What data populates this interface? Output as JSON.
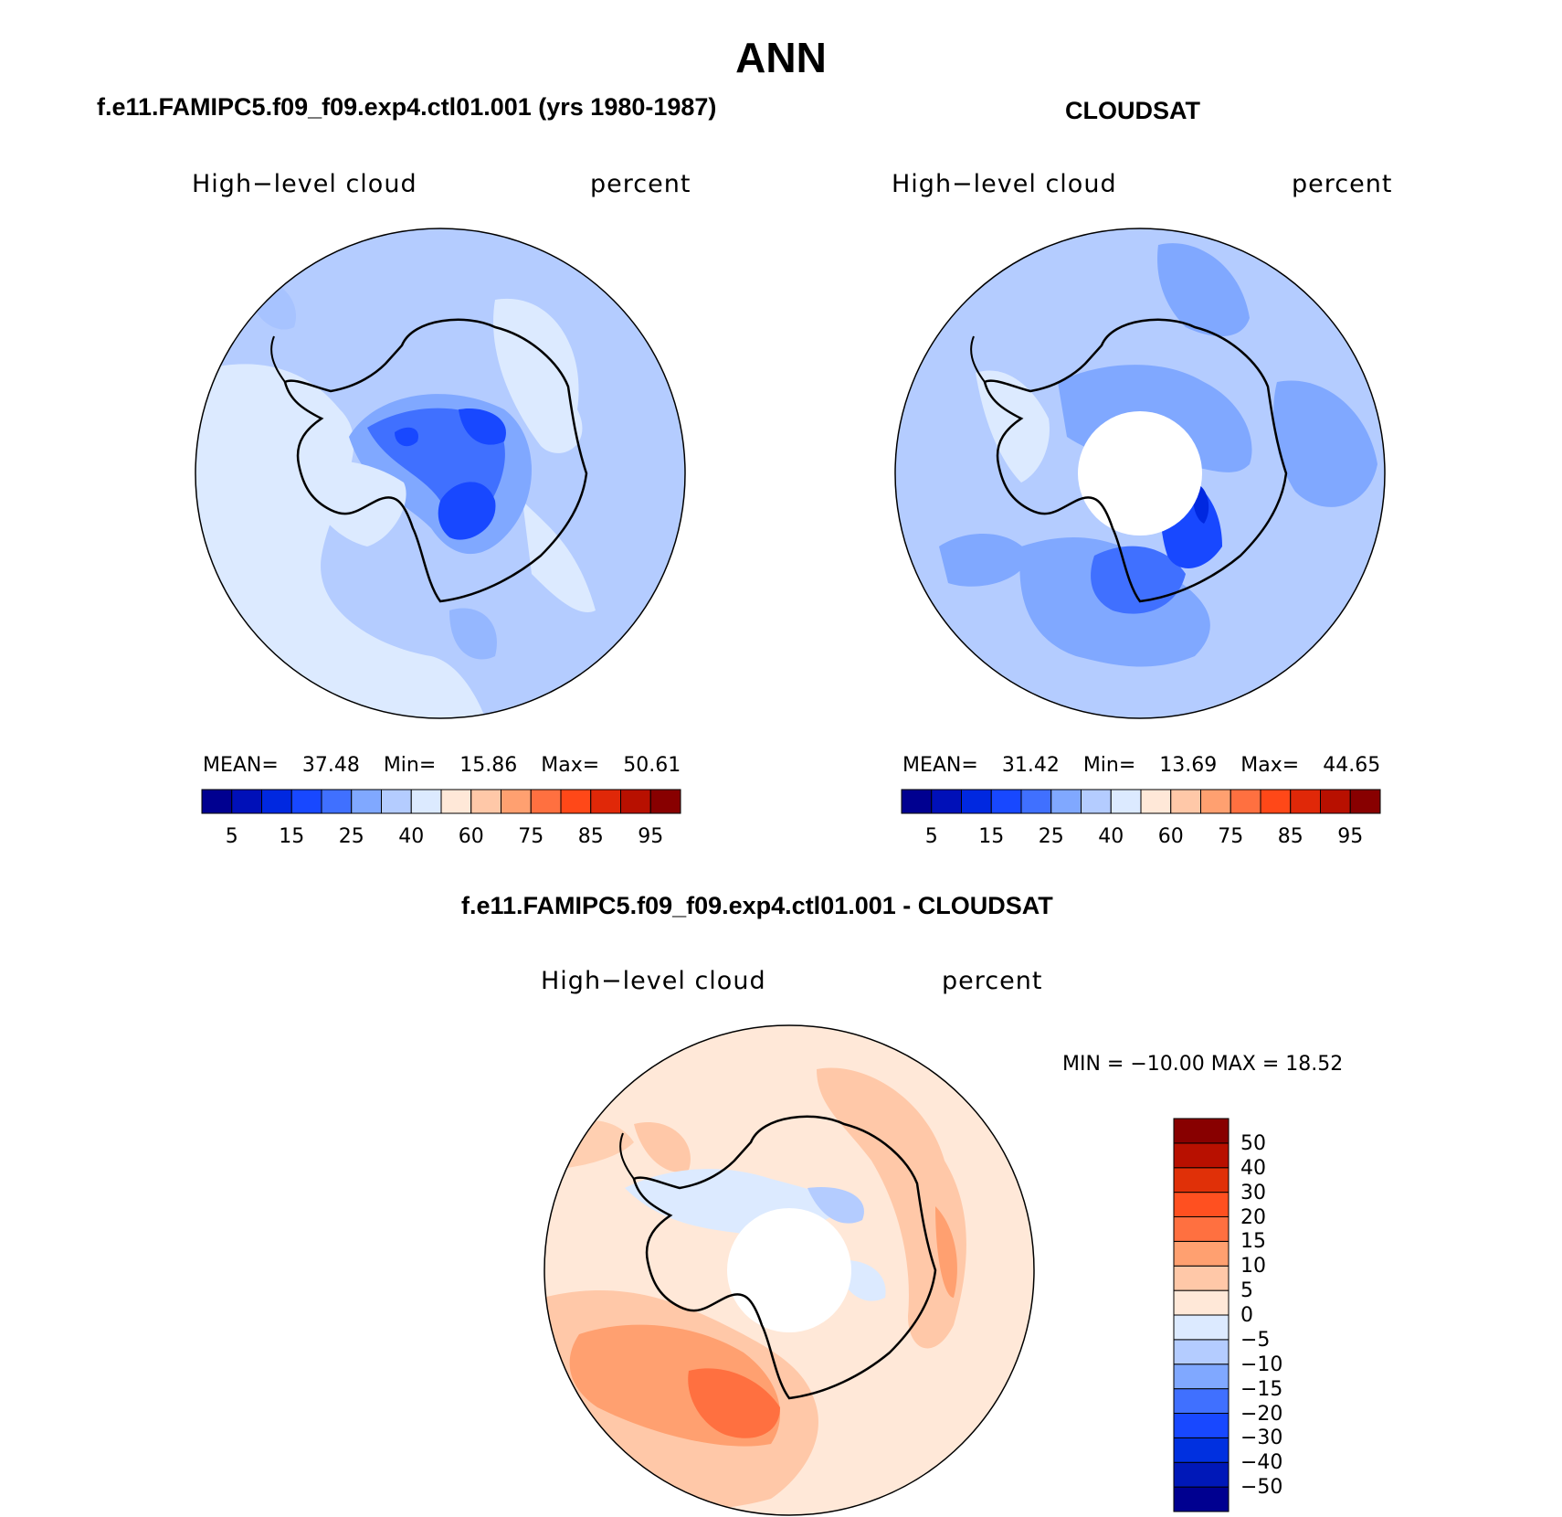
{
  "season": "ANN",
  "panels": [
    {
      "id": "model",
      "title": "f.e11.FAMIPC5.f09_f09.exp4.ctl01.001 (yrs 1980-1987)",
      "variable": "High−level cloud",
      "units": "percent",
      "stats": {
        "mean_label": "MEAN=",
        "mean": "37.48",
        "min_label": "Min=",
        "min": "15.86",
        "max_label": "Max=",
        "max": "50.61"
      }
    },
    {
      "id": "obs",
      "title": "CLOUDSAT",
      "variable": "High−level cloud",
      "units": "percent",
      "stats": {
        "mean_label": "MEAN=",
        "mean": "31.42",
        "min_label": "Min=",
        "min": "13.69",
        "max_label": "Max=",
        "max": "44.65"
      }
    },
    {
      "id": "diff",
      "title": "f.e11.FAMIPC5.f09_f09.exp4.ctl01.001 - CLOUDSAT",
      "variable": "High−level cloud",
      "units": "percent",
      "stats_text": "MIN = −10.00 MAX =   18.52"
    }
  ],
  "colorbar_main": {
    "colors": [
      "#000090",
      "#0010b8",
      "#0028e0",
      "#1848ff",
      "#4070ff",
      "#80a8ff",
      "#b4ccff",
      "#dceaff",
      "#ffe8d8",
      "#ffc8a8",
      "#ffa070",
      "#ff7040",
      "#ff4818",
      "#e02808",
      "#b81000",
      "#880000"
    ],
    "tick_labels": [
      "5",
      "15",
      "25",
      "40",
      "60",
      "75",
      "85",
      "95"
    ]
  },
  "colorbar_diff": {
    "colors": [
      "#000090",
      "#0018b8",
      "#0030e0",
      "#1848ff",
      "#4070ff",
      "#80a8ff",
      "#b4ccff",
      "#dceaff",
      "#ffe8d8",
      "#ffc8a8",
      "#ffa070",
      "#ff7040",
      "#ff5020",
      "#e03008",
      "#b81000",
      "#880000"
    ],
    "tick_labels": [
      "−50",
      "−40",
      "−30",
      "−20",
      "−15",
      "−10",
      "−5",
      "0",
      "5",
      "10",
      "15",
      "20",
      "30",
      "40",
      "50"
    ]
  }
}
